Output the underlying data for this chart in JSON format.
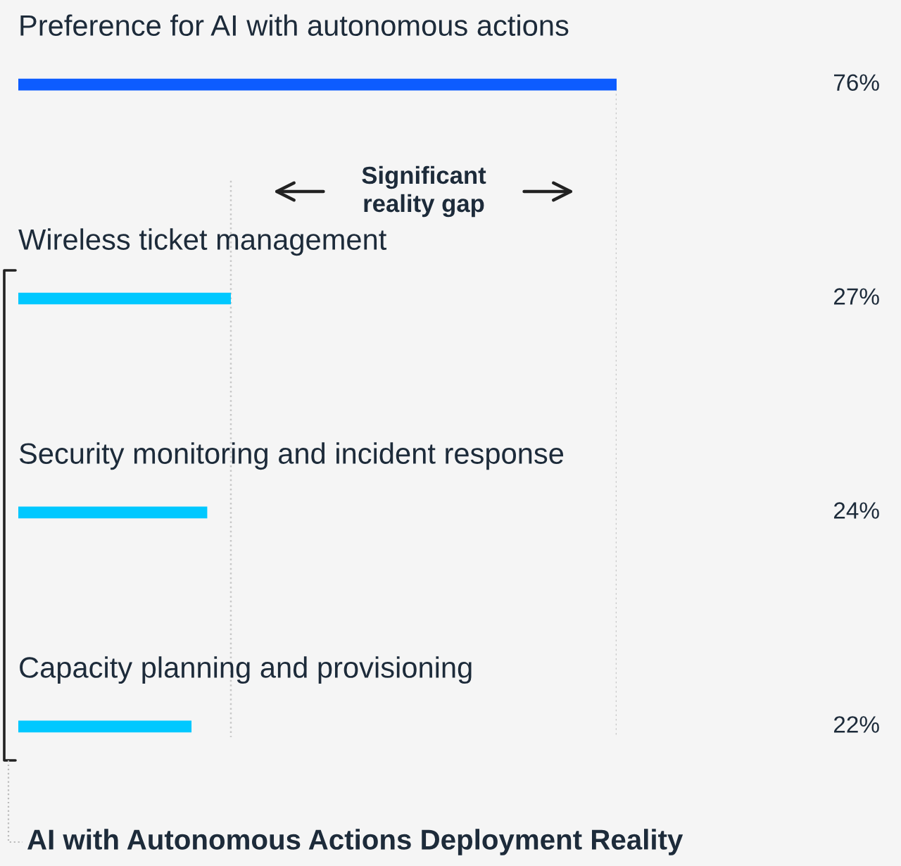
{
  "chart_data": {
    "type": "bar",
    "orientation": "horizontal",
    "categories": [
      "Preference for AI with autonomous actions",
      "Wireless ticket management",
      "Security monitoring and incident response",
      "Capacity planning and provisioning"
    ],
    "values": [
      76,
      27,
      24,
      22
    ],
    "value_labels": [
      "76%",
      "27%",
      "24%",
      "22%"
    ],
    "colors": [
      "#0d5cff",
      "#00c8ff",
      "#00c8ff",
      "#00c8ff"
    ],
    "ref_lines": [
      {
        "axis": "x",
        "value": 27,
        "color": "#c8c8c8",
        "line_style": "dotted"
      },
      {
        "axis": "x",
        "value": 76,
        "color": "#c8c8c8",
        "line_style": "dotted"
      }
    ],
    "annotations": [
      "Significant\nreality gap",
      "AI with Autonomous Actions Deployment Reality"
    ],
    "legend": false
  }
}
